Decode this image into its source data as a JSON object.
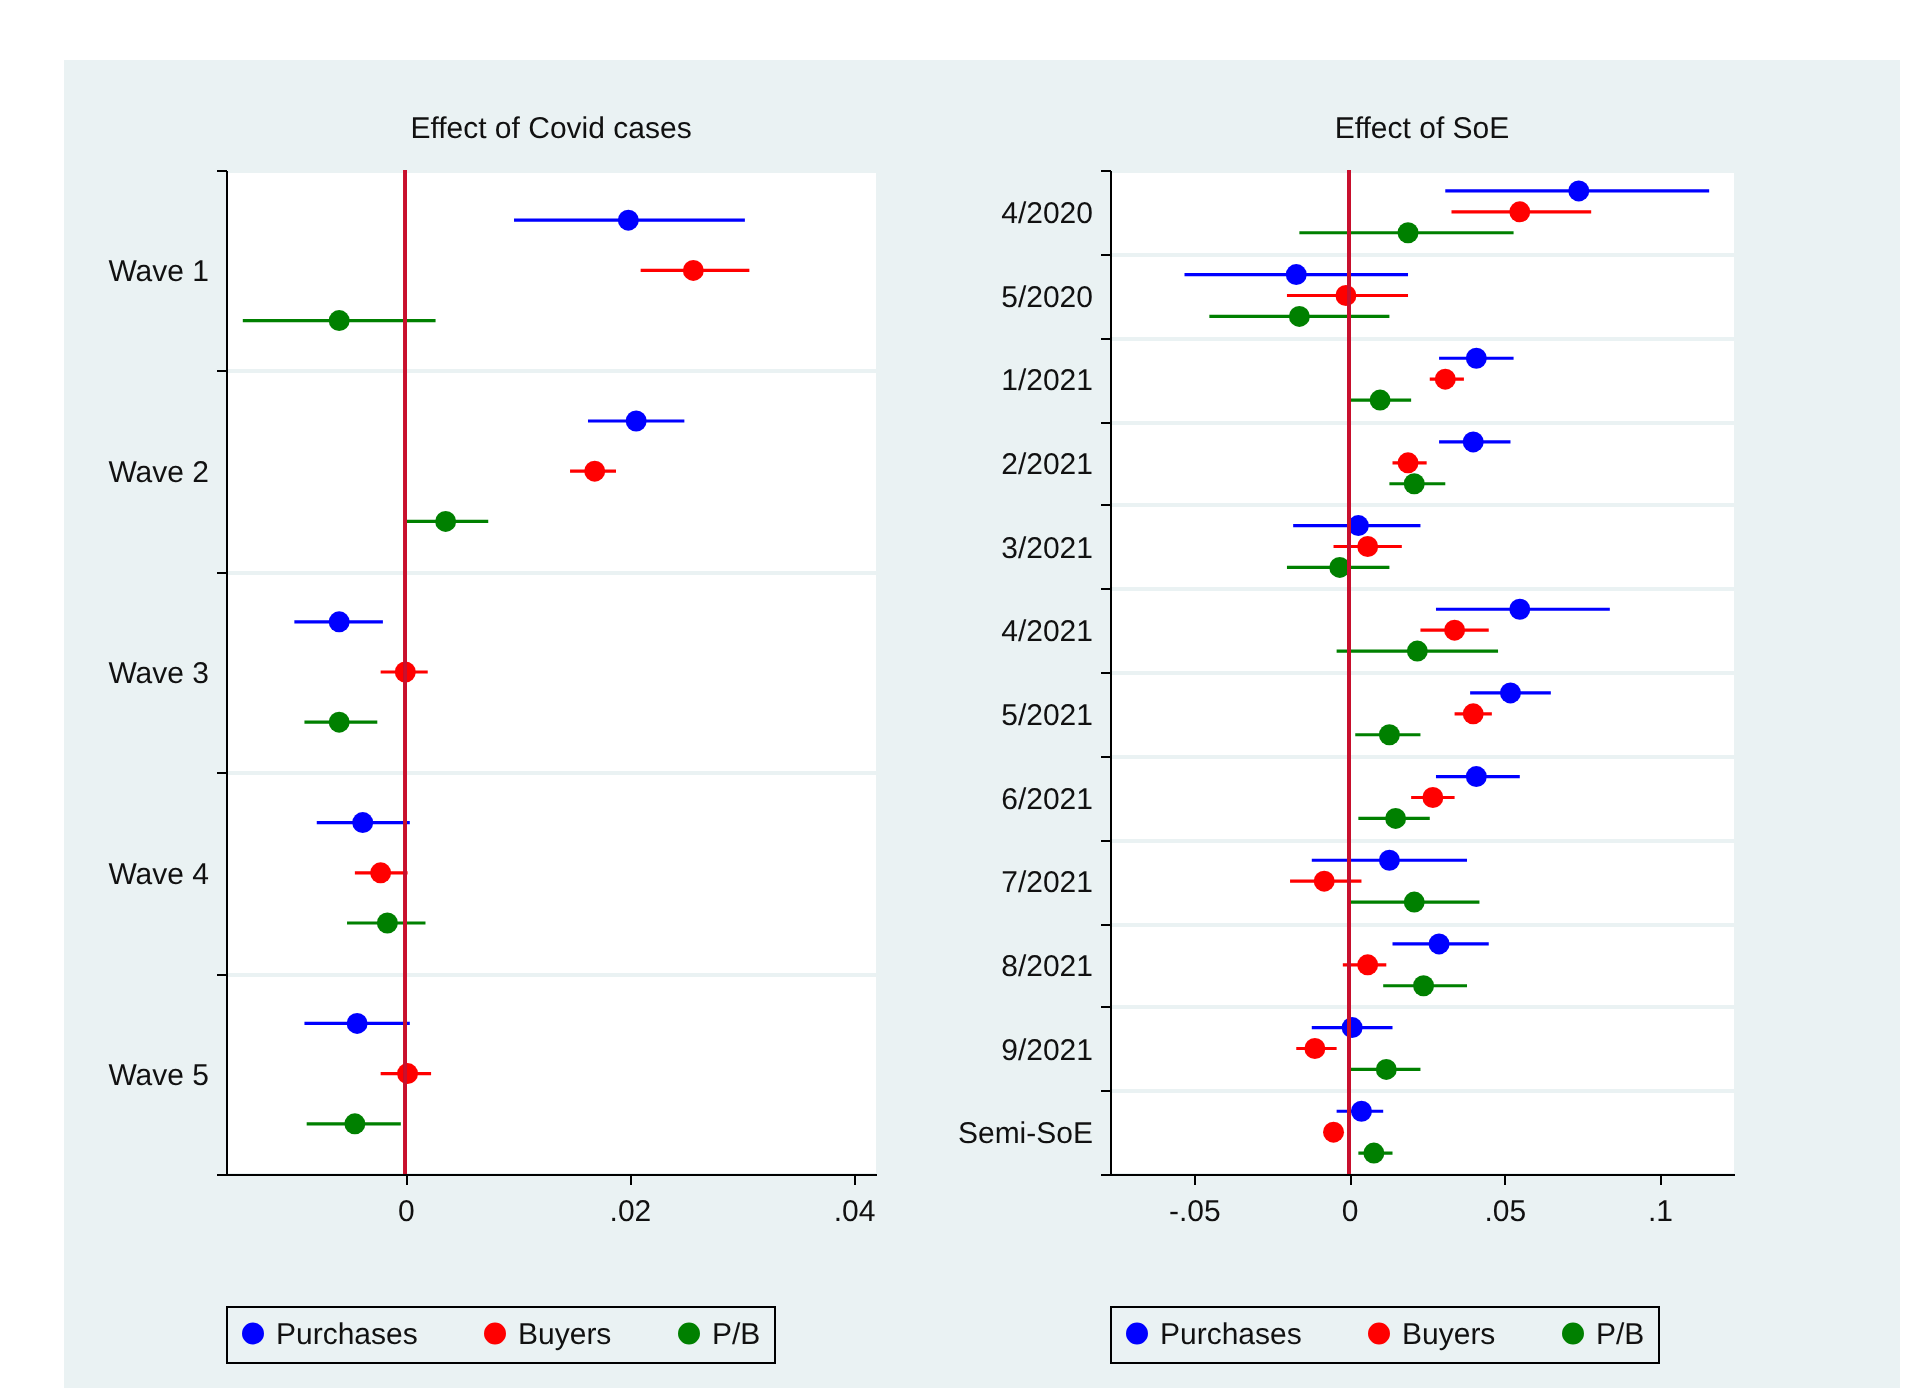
{
  "chart_data": [
    {
      "type": "scatter",
      "orientation": "horizontal",
      "title": "Effect of Covid cases",
      "categories": [
        "Wave 1",
        "Wave 2",
        "Wave 3",
        "Wave 4",
        "Wave 5"
      ],
      "series": [
        {
          "name": "Purchases",
          "color": "#0000ff",
          "values": [
            0.0199,
            0.0206,
            -0.0059,
            -0.0038,
            -0.0043
          ],
          "errors": [
            [
              0.0097,
              0.0303
            ],
            [
              0.0163,
              0.0249
            ],
            [
              -0.0099,
              -0.002
            ],
            [
              -0.0079,
              0.0004
            ],
            [
              -0.009,
              0.0004
            ]
          ]
        },
        {
          "name": "Buyers",
          "color": "#ff0000",
          "values": [
            0.0257,
            0.0169,
            0,
            -0.0022,
            0.0002
          ],
          "errors": [
            [
              0.021,
              0.0307
            ],
            [
              0.0147,
              0.0188
            ],
            [
              -0.0022,
              0.002
            ],
            [
              -0.0045,
              0.0002
            ],
            [
              -0.0022,
              0.0023
            ]
          ]
        },
        {
          "name": "P/B",
          "color": "#008000",
          "values": [
            -0.0059,
            0.0036,
            -0.0059,
            -0.0016,
            -0.0045
          ],
          "errors": [
            [
              -0.0145,
              0.0027
            ],
            [
              0,
              0.0074
            ],
            [
              -0.009,
              -0.0025
            ],
            [
              -0.0052,
              0.0018
            ],
            [
              -0.0088,
              -0.0004
            ]
          ]
        }
      ],
      "xlim": [
        -0.016,
        0.042
      ],
      "xticks": [
        0,
        {
          "value": 0.02,
          "label": ".02"
        },
        {
          "value": 0.04,
          "label": ".04"
        }
      ],
      "ref_lines": [
        {
          "axis": "x",
          "value": 0,
          "color": "#c8102e"
        }
      ],
      "grid": "y",
      "legend": "bottom",
      "marker": "circle"
    },
    {
      "type": "scatter",
      "orientation": "horizontal",
      "title": "Effect of SoE",
      "categories": [
        "4/2020",
        "5/2020",
        "1/2021",
        "2/2021",
        "3/2021",
        "4/2021",
        "5/2021",
        "6/2021",
        "7/2021",
        "8/2021",
        "9/2021",
        "Semi-SoE"
      ],
      "series": [
        {
          "name": "Purchases",
          "color": "#0000ff",
          "values": [
            0.074,
            -0.017,
            0.041,
            0.04,
            0.003,
            0.055,
            0.052,
            0.041,
            0.013,
            0.029,
            0.001,
            0.004
          ],
          "errors": [
            [
              0.031,
              0.116
            ],
            [
              -0.053,
              0.019
            ],
            [
              0.029,
              0.053
            ],
            [
              0.029,
              0.052
            ],
            [
              -0.018,
              0.023
            ],
            [
              0.028,
              0.084
            ],
            [
              0.039,
              0.065
            ],
            [
              0.028,
              0.055
            ],
            [
              -0.012,
              0.038
            ],
            [
              0.014,
              0.045
            ],
            [
              -0.012,
              0.014
            ],
            [
              -0.004,
              0.011
            ]
          ]
        },
        {
          "name": "Buyers",
          "color": "#ff0000",
          "values": [
            0.055,
            -0.001,
            0.031,
            0.019,
            0.006,
            0.034,
            0.04,
            0.027,
            -0.008,
            0.006,
            -0.011,
            -0.005
          ],
          "errors": [
            [
              0.033,
              0.078
            ],
            [
              -0.02,
              0.019
            ],
            [
              0.026,
              0.037
            ],
            [
              0.014,
              0.025
            ],
            [
              -0.005,
              0.017
            ],
            [
              0.023,
              0.045
            ],
            [
              0.034,
              0.046
            ],
            [
              0.02,
              0.034
            ],
            [
              -0.019,
              0.004
            ],
            [
              -0.002,
              0.012
            ],
            [
              -0.017,
              -0.004
            ],
            [
              -0.008,
              -0.002
            ]
          ]
        },
        {
          "name": "P/B",
          "color": "#008000",
          "values": [
            0.019,
            -0.016,
            0.01,
            0.021,
            -0.003,
            0.022,
            0.013,
            0.015,
            0.021,
            0.024,
            0.012,
            0.008
          ],
          "errors": [
            [
              -0.016,
              0.053
            ],
            [
              -0.045,
              0.013
            ],
            [
              0,
              0.02
            ],
            [
              0.013,
              0.031
            ],
            [
              -0.02,
              0.013
            ],
            [
              -0.004,
              0.048
            ],
            [
              0.002,
              0.023
            ],
            [
              0.003,
              0.026
            ],
            [
              0,
              0.042
            ],
            [
              0.011,
              0.038
            ],
            [
              0,
              0.023
            ],
            [
              0.003,
              0.014
            ]
          ]
        }
      ],
      "xlim": [
        -0.077,
        0.124
      ],
      "xticks": [
        {
          "value": -0.05,
          "label": "-.05"
        },
        0,
        {
          "value": 0.05,
          "label": ".05"
        },
        {
          "value": 0.1,
          "label": ".1"
        }
      ],
      "ref_lines": [
        {
          "axis": "x",
          "value": 0,
          "color": "#c8102e"
        }
      ],
      "grid": "y",
      "legend": "bottom",
      "marker": "circle"
    }
  ]
}
